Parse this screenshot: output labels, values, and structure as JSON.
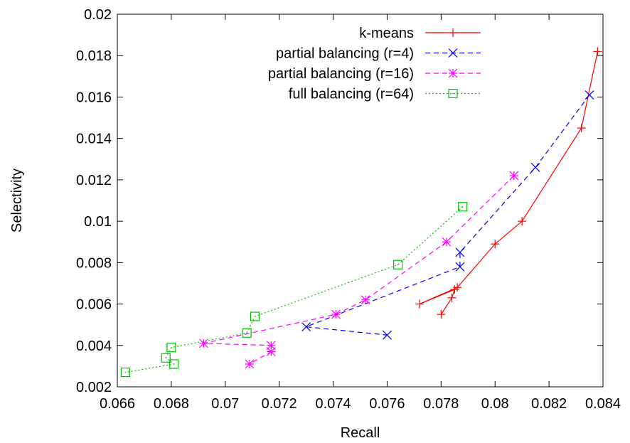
{
  "chart_data": {
    "type": "line",
    "title": "",
    "xlabel": "Recall",
    "ylabel": "Selectivity",
    "xlim": [
      0.066,
      0.084
    ],
    "ylim": [
      0.002,
      0.02
    ],
    "xticks": [
      "0.066",
      "0.068",
      "0.07",
      "0.072",
      "0.074",
      "0.076",
      "0.078",
      "0.08",
      "0.082",
      "0.084"
    ],
    "yticks": [
      "0.002",
      "0.004",
      "0.006",
      "0.008",
      "0.01",
      "0.012",
      "0.014",
      "0.016",
      "0.018",
      "0.02"
    ],
    "grid": false,
    "legend_position": "top-right",
    "series": [
      {
        "name": "k-means",
        "color": "#ff0000",
        "marker": "plus",
        "dash": "solid",
        "points": [
          [
            0.0838,
            0.0182
          ],
          [
            0.0832,
            0.0145
          ],
          [
            0.081,
            0.01
          ],
          [
            0.08,
            0.0089
          ],
          [
            0.0786,
            0.0068
          ],
          [
            0.0772,
            0.006
          ],
          [
            0.0785,
            0.0067
          ],
          [
            0.0784,
            0.0063
          ],
          [
            0.078,
            0.0055
          ]
        ]
      },
      {
        "name": "partial balancing (r=4)",
        "color": "#0000ff",
        "marker": "cross",
        "dash": "dashed",
        "points": [
          [
            0.0835,
            0.0161
          ],
          [
            0.0815,
            0.0126
          ],
          [
            0.0787,
            0.0085
          ],
          [
            0.0787,
            0.0078
          ],
          [
            0.073,
            0.0049
          ],
          [
            0.076,
            0.0045
          ]
        ]
      },
      {
        "name": "partial balancing (r=16)",
        "color": "#ff00ff",
        "marker": "star",
        "dash": "dashed",
        "points": [
          [
            0.0807,
            0.0122
          ],
          [
            0.0782,
            0.009
          ],
          [
            0.0752,
            0.0062
          ],
          [
            0.0741,
            0.0055
          ],
          [
            0.0692,
            0.0041
          ],
          [
            0.0717,
            0.004
          ],
          [
            0.0717,
            0.0037
          ],
          [
            0.0709,
            0.0031
          ]
        ]
      },
      {
        "name": "full balancing (r=64)",
        "color": "#00c000",
        "marker": "square",
        "dash": "dotted",
        "points": [
          [
            0.0788,
            0.0107
          ],
          [
            0.0764,
            0.0079
          ],
          [
            0.0711,
            0.0054
          ],
          [
            0.0708,
            0.0046
          ],
          [
            0.068,
            0.0039
          ],
          [
            0.0678,
            0.0034
          ],
          [
            0.0681,
            0.0031
          ],
          [
            0.0663,
            0.0027
          ]
        ]
      }
    ]
  }
}
